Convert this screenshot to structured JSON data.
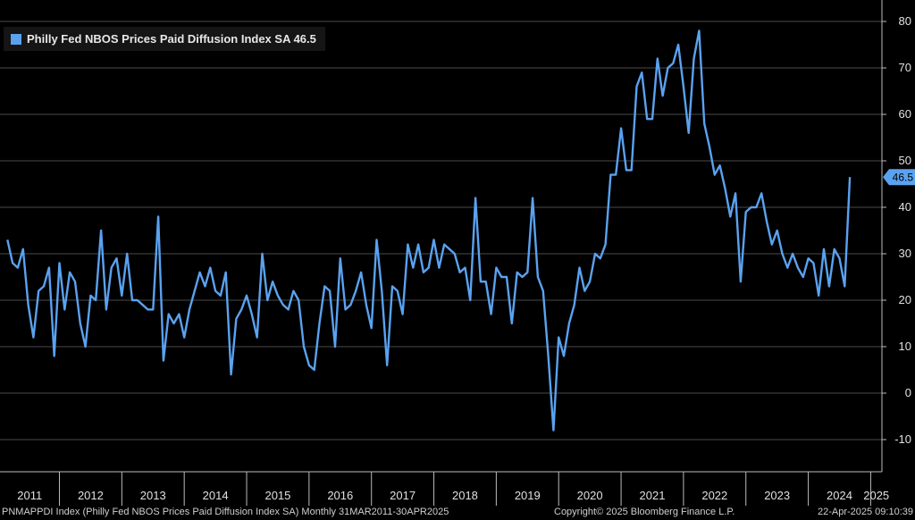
{
  "chart_data": {
    "type": "line",
    "title": "",
    "xlabel": "",
    "ylabel": "",
    "ylim": [
      -17,
      84
    ],
    "y_ticks": [
      -10,
      0,
      10,
      20,
      30,
      40,
      50,
      60,
      70,
      80
    ],
    "x_ticks": [
      "2011",
      "2012",
      "2013",
      "2014",
      "2015",
      "2016",
      "2017",
      "2018",
      "2019",
      "2020",
      "2021",
      "2022",
      "2023",
      "2024",
      "2025"
    ],
    "x_range": [
      "2011-03",
      "2025-04"
    ],
    "grid": "horizontal",
    "legend_position": "top-left",
    "last_value_label": "46.5",
    "series": [
      {
        "name": "Philly Fed NBOS Prices Paid Diffusion Index SA 46.5",
        "color": "#5aa2f0",
        "start": "2011-03",
        "frequency": "monthly",
        "values": [
          33,
          28,
          27,
          31,
          19,
          12,
          22,
          23,
          27,
          8,
          28,
          18,
          26,
          24,
          15,
          10,
          21,
          20,
          35,
          18,
          27,
          29,
          21,
          30,
          20,
          20,
          19,
          18,
          18,
          38,
          7,
          17,
          15,
          17,
          12,
          18,
          22,
          26,
          23,
          27,
          22,
          21,
          26,
          4,
          16,
          18,
          21,
          17,
          12,
          30,
          20,
          24,
          21,
          19,
          18,
          22,
          20,
          10,
          6,
          5,
          15,
          23,
          22,
          10,
          29,
          18,
          19,
          22,
          26,
          19,
          14,
          33,
          22,
          6,
          23,
          22,
          17,
          32,
          27,
          32,
          26,
          27,
          33,
          27,
          32,
          31,
          30,
          26,
          27,
          20,
          42,
          24,
          24,
          17,
          27,
          25,
          25,
          15,
          26,
          25,
          26,
          42,
          25,
          22,
          8,
          -8,
          12,
          8,
          15,
          19,
          27,
          22,
          24,
          30,
          29,
          32,
          47,
          47,
          57,
          48,
          48,
          66,
          69,
          59,
          59,
          72,
          64,
          70,
          71,
          75,
          66,
          56,
          72,
          78,
          58,
          53,
          47,
          49,
          44,
          38,
          43,
          24,
          39,
          40,
          40,
          43,
          37,
          32,
          35,
          30,
          27,
          30,
          27,
          25,
          29,
          28,
          21,
          31,
          23,
          31,
          29,
          23,
          46.5
        ]
      }
    ]
  },
  "legend": {
    "label": "Philly Fed NBOS Prices Paid Diffusion Index SA 46.5"
  },
  "footer": {
    "left": "PNMAPPDI Index (Philly Fed NBOS Prices Paid Diffusion Index SA)  Monthly 31MAR2011-30APR2025",
    "center": "Copyright© 2025 Bloomberg Finance L.P.",
    "right": "22-Apr-2025 09:10:39"
  }
}
